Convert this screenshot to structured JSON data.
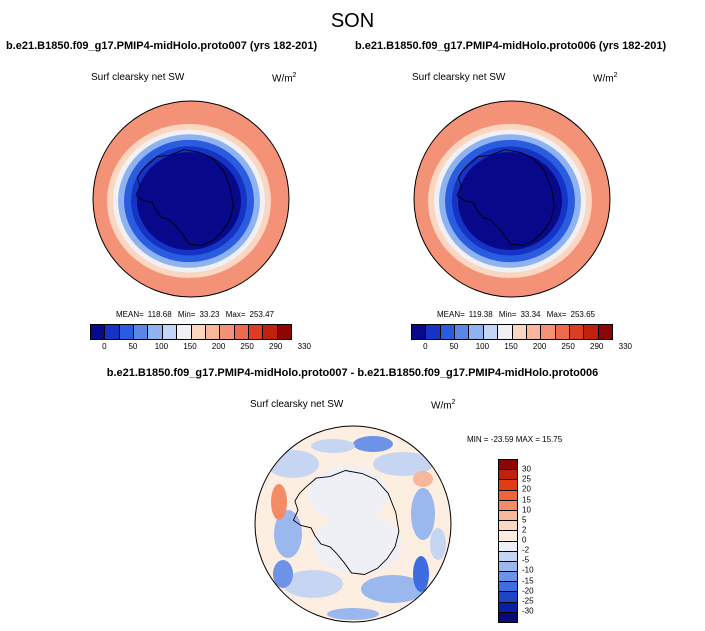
{
  "figure": {
    "title": "SON"
  },
  "panels": [
    {
      "title": "b.e21.B1850.f09_g17.PMIP4-midHolo.proto007 (yrs 182-201)",
      "variable": "Surf clearsky net SW",
      "units_base": "W/m",
      "units_exp": "2",
      "stats": {
        "mean_label": "MEAN=",
        "mean": "118.68",
        "min_label": "Min=",
        "min": "33.23",
        "max_label": "Max=",
        "max": "253.47"
      }
    },
    {
      "title": "b.e21.B1850.f09_g17.PMIP4-midHolo.proto006 (yrs 182-201)",
      "variable": "Surf clearsky net SW",
      "units_base": "W/m",
      "units_exp": "2",
      "stats": {
        "mean_label": "MEAN=",
        "mean": "119.38",
        "min_label": "Min=",
        "min": "33.34",
        "max_label": "Max=",
        "max": "253.65"
      }
    },
    {
      "title": "b.e21.B1850.f09_g17.PMIP4-midHolo.proto007 - b.e21.B1850.f09_g17.PMIP4-midHolo.proto006",
      "variable": "Surf clearsky net SW",
      "units_base": "W/m",
      "units_exp": "2",
      "stats": {
        "text": "MIN = -23.59 MAX =  15.75"
      }
    }
  ],
  "chart_data": [
    {
      "type": "heatmap",
      "projection": "south polar stereographic",
      "title": "b.e21.B1850.f09_g17.PMIP4-midHolo.proto007 (yrs 182-201)",
      "variable": "Surf clearsky net SW",
      "units": "W/m2",
      "mean": 118.68,
      "min": 33.23,
      "max": 253.47,
      "colorbar_levels": [
        "0",
        "50",
        "100",
        "150",
        "200",
        "250",
        "290",
        "330"
      ],
      "colorbar_colors": [
        "#08088a",
        "#1533c4",
        "#2a5ce0",
        "#5a86e8",
        "#8fb2f0",
        "#c2d6f5",
        "#f1f1f5",
        "#fbd6c0",
        "#f8b69a",
        "#f39276",
        "#ec6a4f",
        "#dd3d22",
        "#c0200e",
        "#8c0606"
      ],
      "field_bands": [
        {
          "level": 0.95,
          "color": "#f39276"
        },
        {
          "level": 0.82,
          "color": "#fbd6c0"
        },
        {
          "level": 0.76,
          "color": "#f1f1f5"
        },
        {
          "level": 0.71,
          "color": "#8fb2f0"
        },
        {
          "level": 0.65,
          "color": "#2a5ce0"
        },
        {
          "level": 0.58,
          "color": "#1533c4"
        },
        {
          "level": 0.52,
          "color": "#08088a"
        }
      ]
    },
    {
      "type": "heatmap",
      "projection": "south polar stereographic",
      "title": "b.e21.B1850.f09_g17.PMIP4-midHolo.proto006 (yrs 182-201)",
      "variable": "Surf clearsky net SW",
      "units": "W/m2",
      "mean": 119.38,
      "min": 33.34,
      "max": 253.65,
      "colorbar_levels": [
        "0",
        "50",
        "100",
        "150",
        "200",
        "250",
        "290",
        "330"
      ],
      "colorbar_colors": [
        "#08088a",
        "#1533c4",
        "#2a5ce0",
        "#5a86e8",
        "#8fb2f0",
        "#c2d6f5",
        "#f1f1f5",
        "#fbd6c0",
        "#f8b69a",
        "#f39276",
        "#ec6a4f",
        "#dd3d22",
        "#c0200e",
        "#8c0606"
      ],
      "field_bands": [
        {
          "level": 0.95,
          "color": "#f39276"
        },
        {
          "level": 0.82,
          "color": "#fbd6c0"
        },
        {
          "level": 0.76,
          "color": "#f1f1f5"
        },
        {
          "level": 0.71,
          "color": "#8fb2f0"
        },
        {
          "level": 0.65,
          "color": "#2a5ce0"
        },
        {
          "level": 0.58,
          "color": "#1533c4"
        },
        {
          "level": 0.52,
          "color": "#08088a"
        }
      ]
    },
    {
      "type": "heatmap",
      "projection": "south polar stereographic",
      "title": "b.e21.B1850.f09_g17.PMIP4-midHolo.proto007 - b.e21.B1850.f09_g17.PMIP4-midHolo.proto006",
      "variable": "Surf clearsky net SW",
      "units": "W/m2",
      "min": -23.59,
      "max": 15.75,
      "colorbar_levels": [
        "30",
        "25",
        "20",
        "15",
        "10",
        "5",
        "2",
        "0",
        "-2",
        "-5",
        "-10",
        "-15",
        "-20",
        "-25",
        "-30"
      ],
      "colorbar_colors": [
        "#8c0606",
        "#c0200e",
        "#e23c14",
        "#f0643a",
        "#f38b66",
        "#f8b69a",
        "#fbd6c0",
        "#fdeee2",
        "#eef0f6",
        "#c6d6f2",
        "#9ab8ee",
        "#6c93e8",
        "#3f6ce0",
        "#1f44c8",
        "#0a1fa8",
        "#08087a"
      ]
    }
  ]
}
